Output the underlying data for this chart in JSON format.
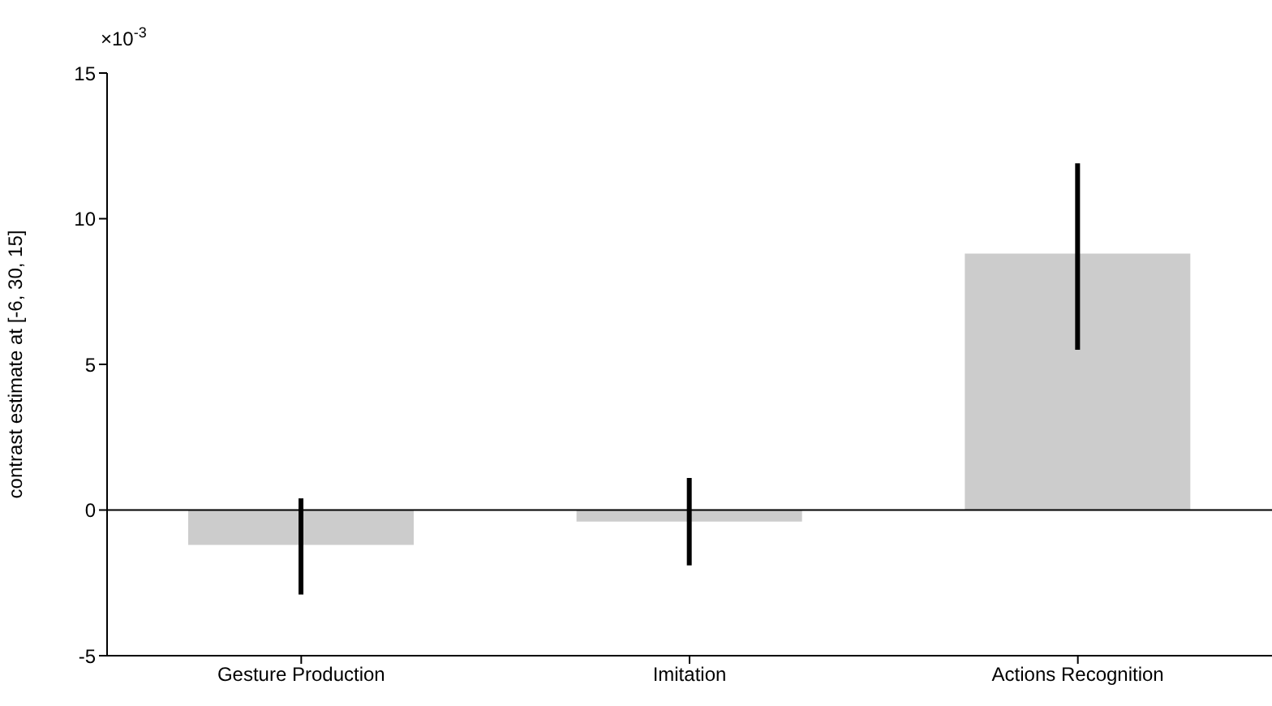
{
  "chart_data": {
    "type": "bar",
    "ylabel": "contrast estimate at [-6, 30, 15]",
    "categories": [
      "Gesture Production",
      "Imitation",
      "Actions Recognition"
    ],
    "values": [
      -1.2,
      -0.4,
      8.8
    ],
    "errors": [
      [
        -2.9,
        0.4
      ],
      [
        -1.9,
        1.1
      ],
      [
        5.5,
        11.9
      ]
    ],
    "color": "#cccccc",
    "ylim": [
      -5,
      15
    ],
    "yticks": [
      -5,
      0,
      5,
      10,
      15
    ],
    "ref_lines": [
      {
        "axis": "y",
        "value": 0,
        "color": "#000000"
      }
    ],
    "annotations": [
      "×10$^{-3}$"
    ],
    "grid": false,
    "legend": false
  }
}
